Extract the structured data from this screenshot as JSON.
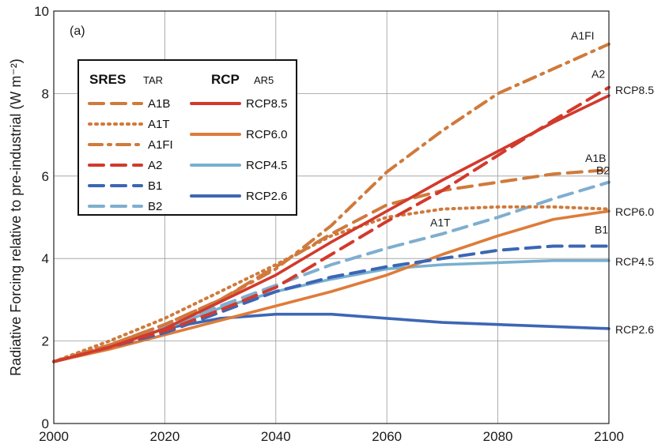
{
  "colors": {
    "A1B": "#cf7a3c",
    "A1T": "#cf7a3c",
    "A1FI": "#cf7a3c",
    "A2": "#d23a2c",
    "B1": "#3c66b4",
    "B2": "#7faecf",
    "RCP8.5": "#d23a2c",
    "RCP6.0": "#de7c3a",
    "RCP4.5": "#78b0cf",
    "RCP2.6": "#3d66b5"
  },
  "chart_data": {
    "type": "line",
    "panel_label": "(a)",
    "ylabel": "Radiative Forcing relative to pre-industrial (W m⁻²)",
    "xlabel": "",
    "xlim": [
      2000,
      2100
    ],
    "ylim": [
      0,
      10
    ],
    "xticks": [
      2000,
      2020,
      2040,
      2060,
      2080,
      2100
    ],
    "yticks": [
      0,
      2,
      4,
      6,
      8,
      10
    ],
    "grid": true,
    "legend": {
      "placement": "upper-left",
      "sres_title": "SRES",
      "sres_subtitle": "TAR",
      "rcp_title": "RCP",
      "rcp_subtitle": "AR5",
      "sres_entries": [
        "A1B",
        "A1T",
        "A1FI",
        "A2",
        "B1",
        "B2"
      ],
      "rcp_entries": [
        "RCP8.5",
        "RCP6.0",
        "RCP4.5",
        "RCP2.6"
      ]
    },
    "series": [
      {
        "name": "A1FI",
        "group": "SRES",
        "style": "dashdot",
        "end_label": "A1FI",
        "x": [
          2000,
          2010,
          2020,
          2030,
          2040,
          2050,
          2060,
          2070,
          2080,
          2090,
          2100
        ],
        "y": [
          1.5,
          1.9,
          2.4,
          3.0,
          3.75,
          4.8,
          6.1,
          7.1,
          8.0,
          8.6,
          9.2
        ]
      },
      {
        "name": "A1B",
        "group": "SRES",
        "style": "dashed",
        "end_label": "A1B",
        "x": [
          2000,
          2010,
          2020,
          2030,
          2040,
          2050,
          2060,
          2070,
          2080,
          2090,
          2100
        ],
        "y": [
          1.5,
          1.9,
          2.4,
          3.0,
          3.8,
          4.6,
          5.3,
          5.65,
          5.85,
          6.05,
          6.15
        ]
      },
      {
        "name": "A1T",
        "group": "SRES",
        "style": "dotted",
        "end_label": "A1T",
        "x": [
          2000,
          2010,
          2020,
          2030,
          2040,
          2050,
          2060,
          2070,
          2080,
          2090,
          2100
        ],
        "y": [
          1.5,
          2.0,
          2.55,
          3.2,
          3.85,
          4.55,
          5.0,
          5.2,
          5.25,
          5.25,
          5.2
        ]
      },
      {
        "name": "A2",
        "group": "SRES",
        "style": "dashed",
        "end_label": "A2",
        "x": [
          2000,
          2010,
          2020,
          2030,
          2040,
          2050,
          2060,
          2070,
          2080,
          2090,
          2100
        ],
        "y": [
          1.5,
          1.85,
          2.25,
          2.75,
          3.3,
          4.1,
          4.9,
          5.65,
          6.5,
          7.35,
          8.15
        ]
      },
      {
        "name": "B1",
        "group": "SRES",
        "style": "dashed",
        "end_label": "B1",
        "x": [
          2000,
          2010,
          2020,
          2030,
          2040,
          2050,
          2060,
          2070,
          2080,
          2090,
          2100
        ],
        "y": [
          1.5,
          1.85,
          2.2,
          2.7,
          3.2,
          3.55,
          3.8,
          4.0,
          4.2,
          4.3,
          4.3
        ]
      },
      {
        "name": "B2",
        "group": "SRES",
        "style": "dashed",
        "end_label": "B2",
        "x": [
          2000,
          2010,
          2020,
          2030,
          2040,
          2050,
          2060,
          2070,
          2080,
          2090,
          2100
        ],
        "y": [
          1.5,
          1.9,
          2.35,
          2.85,
          3.35,
          3.85,
          4.25,
          4.6,
          5.0,
          5.45,
          5.85
        ]
      },
      {
        "name": "RCP8.5",
        "group": "RCP",
        "style": "solid",
        "end_label": "RCP8.5",
        "x": [
          2000,
          2010,
          2020,
          2030,
          2040,
          2050,
          2060,
          2070,
          2080,
          2090,
          2100
        ],
        "y": [
          1.5,
          1.85,
          2.3,
          2.95,
          3.6,
          4.4,
          5.15,
          5.9,
          6.6,
          7.3,
          7.95
        ]
      },
      {
        "name": "RCP6.0",
        "group": "RCP",
        "style": "solid",
        "end_label": "RCP6.0",
        "x": [
          2000,
          2010,
          2020,
          2030,
          2040,
          2050,
          2060,
          2070,
          2080,
          2090,
          2100
        ],
        "y": [
          1.5,
          1.8,
          2.15,
          2.5,
          2.85,
          3.2,
          3.6,
          4.1,
          4.55,
          4.95,
          5.15
        ]
      },
      {
        "name": "RCP4.5",
        "group": "RCP",
        "style": "solid",
        "end_label": "RCP4.5",
        "x": [
          2000,
          2010,
          2020,
          2030,
          2040,
          2050,
          2060,
          2070,
          2080,
          2090,
          2100
        ],
        "y": [
          1.5,
          1.85,
          2.3,
          2.8,
          3.2,
          3.5,
          3.75,
          3.85,
          3.9,
          3.95,
          3.95
        ]
      },
      {
        "name": "RCP2.6",
        "group": "RCP",
        "style": "solid",
        "end_label": "RCP2.6",
        "x": [
          2000,
          2010,
          2020,
          2030,
          2040,
          2050,
          2060,
          2070,
          2080,
          2090,
          2100
        ],
        "y": [
          1.5,
          1.85,
          2.3,
          2.55,
          2.65,
          2.65,
          2.55,
          2.45,
          2.4,
          2.35,
          2.3
        ]
      }
    ]
  }
}
